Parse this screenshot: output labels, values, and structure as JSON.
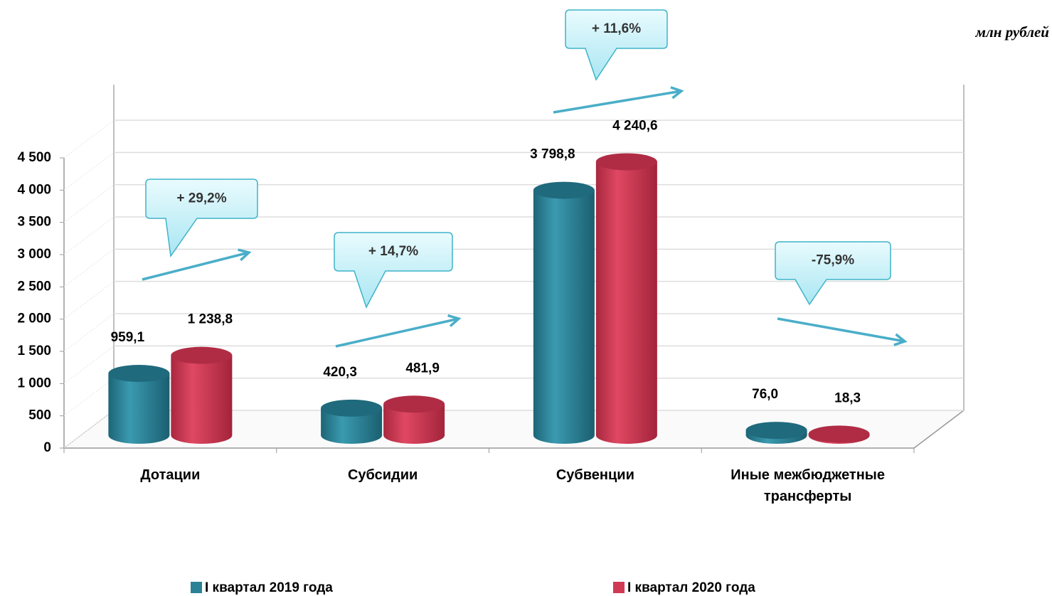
{
  "chart_data": {
    "type": "bar",
    "unit": "млн рублей",
    "categories": [
      "Дотации",
      "Субсидии",
      "Субвенции",
      "Иные межбюджетные трансферты"
    ],
    "series": [
      {
        "name": "I квартал 2019 года",
        "color": "#2b8297",
        "values": [
          959.1,
          420.3,
          3798.8,
          76.0
        ],
        "value_labels": [
          "959,1",
          "420,3",
          "3 798,8",
          "76,0"
        ]
      },
      {
        "name": "I квартал 2020 года",
        "color": "#d13a55",
        "values": [
          1238.8,
          481.9,
          4240.6,
          18.3
        ],
        "value_labels": [
          "1 238,8",
          "481,9",
          "4 240,6",
          "18,3"
        ]
      }
    ],
    "annotations": [
      "+ 29,2%",
      "+ 14,7%",
      "+ 11,6%",
      "-75,9%"
    ],
    "ylim": [
      0,
      4500
    ],
    "yticks": [
      0,
      500,
      {
        "value": 1000,
        "label": "1 000"
      },
      {
        "value": 1500,
        "label": "1 500"
      },
      {
        "value": 2000,
        "label": "2 000"
      },
      {
        "value": 2500,
        "label": "2 500"
      },
      {
        "value": 3000,
        "label": "3 000"
      },
      {
        "value": 3500,
        "label": "3 500"
      },
      {
        "value": 4000,
        "label": "4 000"
      },
      {
        "value": 4500,
        "label": "4 500"
      }
    ],
    "grid": true,
    "legend": "bottom"
  }
}
